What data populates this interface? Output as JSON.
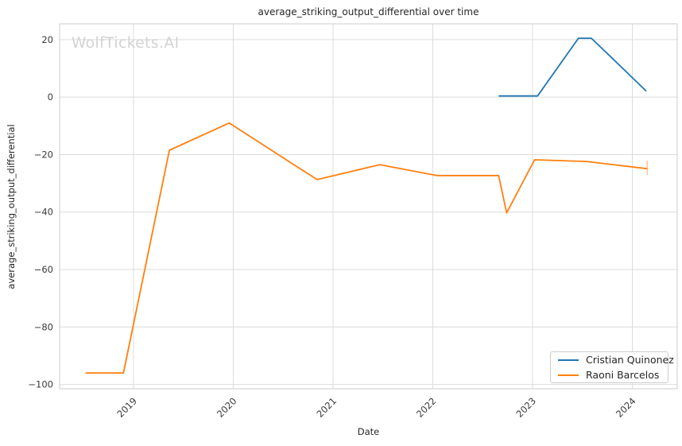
{
  "title": "average_striking_output_differential over time",
  "watermark": "WolfTickets.AI",
  "xlabel": "Date",
  "ylabel": "average_striking_output_differential",
  "legend": {
    "position": "lower right",
    "entries": [
      {
        "label": "Cristian Quinonez",
        "color": "#1f77b4"
      },
      {
        "label": "Raoni Barcelos",
        "color": "#ff7f0e"
      }
    ]
  },
  "colors": {
    "background": "#ffffff",
    "grid": "#dcdcdc",
    "spine": "#cccccc",
    "text": "#262626",
    "tick_text": "#3a3a3a",
    "watermark": "#d2d2d2",
    "series_blue": "#1f77b4",
    "series_orange": "#ff7f0e"
  },
  "chart_data": {
    "type": "line",
    "title": "average_striking_output_differential over time",
    "xlabel": "Date",
    "ylabel": "average_striking_output_differential",
    "grid": true,
    "legend_position": "lower right",
    "xlim": [
      2018.26,
      2024.45
    ],
    "ylim": [
      -101.5,
      25.5
    ],
    "x_ticks": [
      2019,
      2020,
      2021,
      2022,
      2023,
      2024
    ],
    "x_tick_labels": [
      "2019",
      "2020",
      "2021",
      "2022",
      "2023",
      "2024"
    ],
    "x_tick_rotation": 45,
    "y_ticks": [
      20,
      0,
      -20,
      -40,
      -60,
      -80,
      -100
    ],
    "series": [
      {
        "name": "Cristian Quinonez",
        "color": "#1f77b4",
        "x": [
          2022.66,
          2023.05,
          2023.46,
          2023.59,
          2024.14
        ],
        "y": [
          0.4,
          0.4,
          20.5,
          20.5,
          2.1
        ]
      },
      {
        "name": "Raoni Barcelos",
        "color": "#ff7f0e",
        "x": [
          2018.52,
          2018.9,
          2019.36,
          2019.96,
          2020.84,
          2021.47,
          2022.04,
          2022.66,
          2022.74,
          2023.02,
          2023.54,
          2024.15
        ],
        "y": [
          -96.0,
          -96.0,
          -18.5,
          -9.0,
          -28.7,
          -23.5,
          -27.3,
          -27.3,
          -40.3,
          -21.8,
          -22.4,
          -24.9
        ]
      }
    ],
    "end_tick": {
      "x": 2024.15,
      "y_top": -22.1,
      "y_bottom": -27.1,
      "color": "#ff7f0e",
      "opacity": 0.45
    }
  }
}
